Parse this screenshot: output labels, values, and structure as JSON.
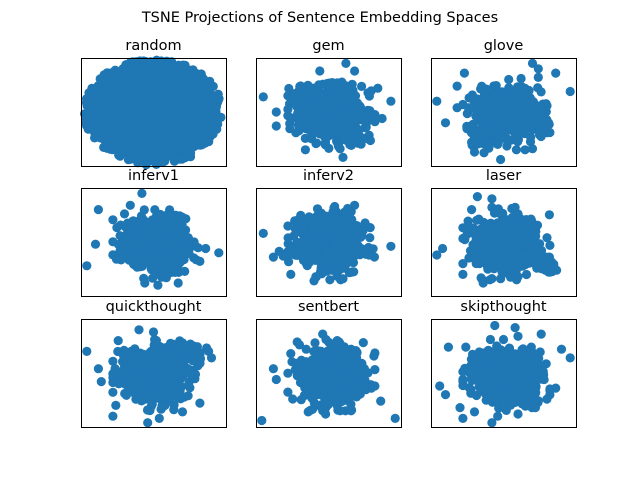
{
  "figure": {
    "suptitle": "TSNE Projections of Sentence Embedding Spaces"
  },
  "colors": {
    "point": "#1f77b4",
    "frame": "#000000",
    "background": "#ffffff"
  },
  "chart_data": [
    {
      "type": "scatter",
      "title": "random",
      "grid": false,
      "xticks": "none",
      "yticks": "none",
      "shape": "dense ellipse",
      "outliers": []
    },
    {
      "type": "scatter",
      "title": "gem",
      "grid": false,
      "xticks": "none",
      "yticks": "none",
      "shape": "dense central cluster with scattered outliers",
      "outliers": [
        [
          0.44,
          0.12
        ],
        [
          0.62,
          0.05
        ],
        [
          0.68,
          0.12
        ],
        [
          0.05,
          0.36
        ],
        [
          0.14,
          0.5
        ],
        [
          0.14,
          0.63
        ],
        [
          0.93,
          0.4
        ],
        [
          0.87,
          0.56
        ],
        [
          0.6,
          0.92
        ],
        [
          0.58,
          0.84
        ],
        [
          0.84,
          0.28
        ]
      ]
    },
    {
      "type": "scatter",
      "title": "glove",
      "grid": false,
      "xticks": "none",
      "yticks": "none",
      "shape": "dense central cluster with scattered outliers",
      "outliers": [
        [
          0.23,
          0.14
        ],
        [
          0.18,
          0.26
        ],
        [
          0.7,
          0.05
        ],
        [
          0.74,
          0.1
        ],
        [
          0.86,
          0.14
        ],
        [
          0.74,
          0.18
        ],
        [
          0.96,
          0.31
        ],
        [
          0.04,
          0.4
        ],
        [
          0.18,
          0.46
        ],
        [
          0.26,
          0.46
        ],
        [
          0.1,
          0.6
        ],
        [
          0.31,
          0.54
        ],
        [
          0.81,
          0.6
        ],
        [
          0.28,
          0.78
        ],
        [
          0.46,
          0.8
        ],
        [
          0.3,
          0.87
        ],
        [
          0.7,
          0.84
        ],
        [
          0.48,
          0.94
        ]
      ]
    },
    {
      "type": "scatter",
      "title": "inferv1",
      "grid": false,
      "xticks": "none",
      "yticks": "none",
      "shape": "dense central cluster with scattered outliers",
      "outliers": [
        [
          0.42,
          0.05
        ],
        [
          0.12,
          0.2
        ],
        [
          0.34,
          0.16
        ],
        [
          0.3,
          0.24
        ],
        [
          0.74,
          0.46
        ],
        [
          0.78,
          0.5
        ],
        [
          0.86,
          0.56
        ],
        [
          0.95,
          0.6
        ],
        [
          0.04,
          0.72
        ],
        [
          0.1,
          0.52
        ],
        [
          0.44,
          0.88
        ],
        [
          0.53,
          0.9
        ],
        [
          0.67,
          0.88
        ],
        [
          0.82,
          0.68
        ]
      ]
    },
    {
      "type": "scatter",
      "title": "inferv2",
      "grid": false,
      "xticks": "none",
      "yticks": "none",
      "shape": "dense central cluster with scattered outliers",
      "outliers": [
        [
          0.68,
          0.16
        ],
        [
          0.62,
          0.24
        ],
        [
          0.48,
          0.26
        ],
        [
          0.4,
          0.28
        ],
        [
          0.05,
          0.42
        ],
        [
          0.93,
          0.54
        ],
        [
          0.12,
          0.64
        ],
        [
          0.24,
          0.8
        ],
        [
          0.4,
          0.86
        ],
        [
          0.6,
          0.84
        ]
      ]
    },
    {
      "type": "scatter",
      "title": "laser",
      "grid": false,
      "xticks": "none",
      "yticks": "none",
      "shape": "dense central cluster with scattered outliers",
      "outliers": [
        [
          0.32,
          0.08
        ],
        [
          0.42,
          0.1
        ],
        [
          0.42,
          0.18
        ],
        [
          0.58,
          0.18
        ],
        [
          0.28,
          0.2
        ],
        [
          0.8,
          0.46
        ],
        [
          0.6,
          0.4
        ],
        [
          0.08,
          0.56
        ],
        [
          0.04,
          0.62
        ],
        [
          0.22,
          0.7
        ],
        [
          0.22,
          0.8
        ],
        [
          0.48,
          0.84
        ],
        [
          0.6,
          0.82
        ],
        [
          0.36,
          0.88
        ]
      ]
    },
    {
      "type": "scatter",
      "title": "quickthought",
      "grid": false,
      "xticks": "none",
      "yticks": "none",
      "shape": "dense central cluster with scattered outliers",
      "outliers": [
        [
          0.04,
          0.3
        ],
        [
          0.12,
          0.46
        ],
        [
          0.14,
          0.58
        ],
        [
          0.26,
          0.6
        ],
        [
          0.24,
          0.8
        ],
        [
          0.22,
          0.9
        ],
        [
          0.4,
          0.1
        ],
        [
          0.5,
          0.12
        ],
        [
          0.52,
          0.2
        ],
        [
          0.88,
          0.3
        ],
        [
          0.9,
          0.36
        ],
        [
          0.7,
          0.22
        ],
        [
          0.64,
          0.84
        ],
        [
          0.7,
          0.86
        ],
        [
          0.54,
          0.92
        ],
        [
          0.46,
          0.96
        ]
      ]
    },
    {
      "type": "scatter",
      "title": "sentbert",
      "grid": false,
      "xticks": "none",
      "yticks": "none",
      "shape": "dense central cluster with scattered outliers",
      "outliers": [
        [
          0.46,
          0.14
        ],
        [
          0.56,
          0.2
        ],
        [
          0.3,
          0.24
        ],
        [
          0.24,
          0.32
        ],
        [
          0.64,
          0.36
        ],
        [
          0.12,
          0.46
        ],
        [
          0.14,
          0.56
        ],
        [
          0.82,
          0.62
        ],
        [
          0.86,
          0.76
        ],
        [
          0.96,
          0.92
        ],
        [
          0.04,
          0.94
        ],
        [
          0.36,
          0.86
        ],
        [
          0.48,
          0.88
        ]
      ]
    },
    {
      "type": "scatter",
      "title": "skipthought",
      "grid": false,
      "xticks": "none",
      "yticks": "none",
      "shape": "dense central cluster with scattered outliers",
      "outliers": [
        [
          0.12,
          0.26
        ],
        [
          0.24,
          0.26
        ],
        [
          0.44,
          0.06
        ],
        [
          0.58,
          0.08
        ],
        [
          0.6,
          0.16
        ],
        [
          0.76,
          0.14
        ],
        [
          0.9,
          0.28
        ],
        [
          0.96,
          0.36
        ],
        [
          0.06,
          0.62
        ],
        [
          0.1,
          0.7
        ],
        [
          0.2,
          0.82
        ],
        [
          0.22,
          0.92
        ],
        [
          0.3,
          0.86
        ],
        [
          0.78,
          0.56
        ],
        [
          0.86,
          0.64
        ],
        [
          0.72,
          0.82
        ],
        [
          0.6,
          0.88
        ],
        [
          0.42,
          0.96
        ],
        [
          0.46,
          0.9
        ]
      ]
    }
  ]
}
